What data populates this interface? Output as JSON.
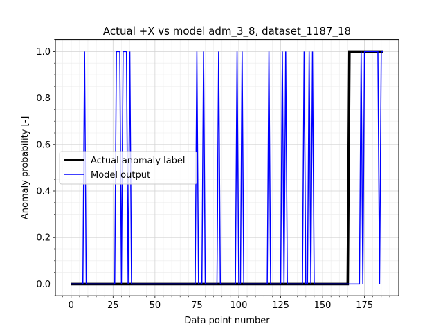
{
  "chart_data": {
    "type": "line",
    "title": "Actual +X vs model adm_3_8, dataset_1187_18",
    "xlabel": "Data point number",
    "ylabel": "Anomaly probability [-]",
    "xlim": [
      -9.4,
      195.4
    ],
    "ylim": [
      -0.05,
      1.05
    ],
    "xticks": [
      0,
      25,
      50,
      75,
      100,
      125,
      150,
      175
    ],
    "yticks": [
      0.0,
      0.2,
      0.4,
      0.6,
      0.8,
      1.0
    ],
    "xtick_labels": [
      "0",
      "25",
      "50",
      "75",
      "100",
      "125",
      "150",
      "175"
    ],
    "ytick_labels": [
      "0.0",
      "0.2",
      "0.4",
      "0.6",
      "0.8",
      "1.0"
    ],
    "grid": true,
    "minor_grid": true,
    "legend_position": "center-left",
    "series": [
      {
        "name": "Actual anomaly label",
        "color": "#000000",
        "width": "thick",
        "x": [
          0,
          165,
          166,
          186
        ],
        "y": [
          0,
          0,
          1,
          1
        ]
      },
      {
        "name": "Model output",
        "color": "#0000ff",
        "width": "thin",
        "x": [
          0,
          7,
          8,
          9,
          26,
          27,
          29,
          30,
          31,
          33,
          34,
          35,
          36,
          37,
          74,
          75,
          76,
          78,
          79,
          80,
          87,
          88,
          89,
          98,
          99,
          100,
          101,
          102,
          103,
          117,
          118,
          119,
          125,
          126,
          127,
          128,
          129,
          138,
          139,
          140,
          141,
          142,
          143,
          144,
          145,
          170,
          171,
          172,
          173,
          174,
          175,
          183,
          184,
          185,
          186
        ],
        "y": [
          0,
          0,
          1,
          0,
          0,
          1,
          1,
          0,
          1,
          1,
          0,
          1,
          0,
          0,
          0,
          1,
          0,
          0,
          1,
          0,
          0,
          1,
          0,
          0,
          1,
          0,
          0,
          1,
          0,
          0,
          1,
          0,
          0,
          1,
          0,
          1,
          0,
          0,
          1,
          0,
          0,
          1,
          0,
          1,
          0,
          0,
          0,
          0,
          1,
          0,
          1,
          1,
          0,
          1,
          1
        ]
      }
    ]
  }
}
